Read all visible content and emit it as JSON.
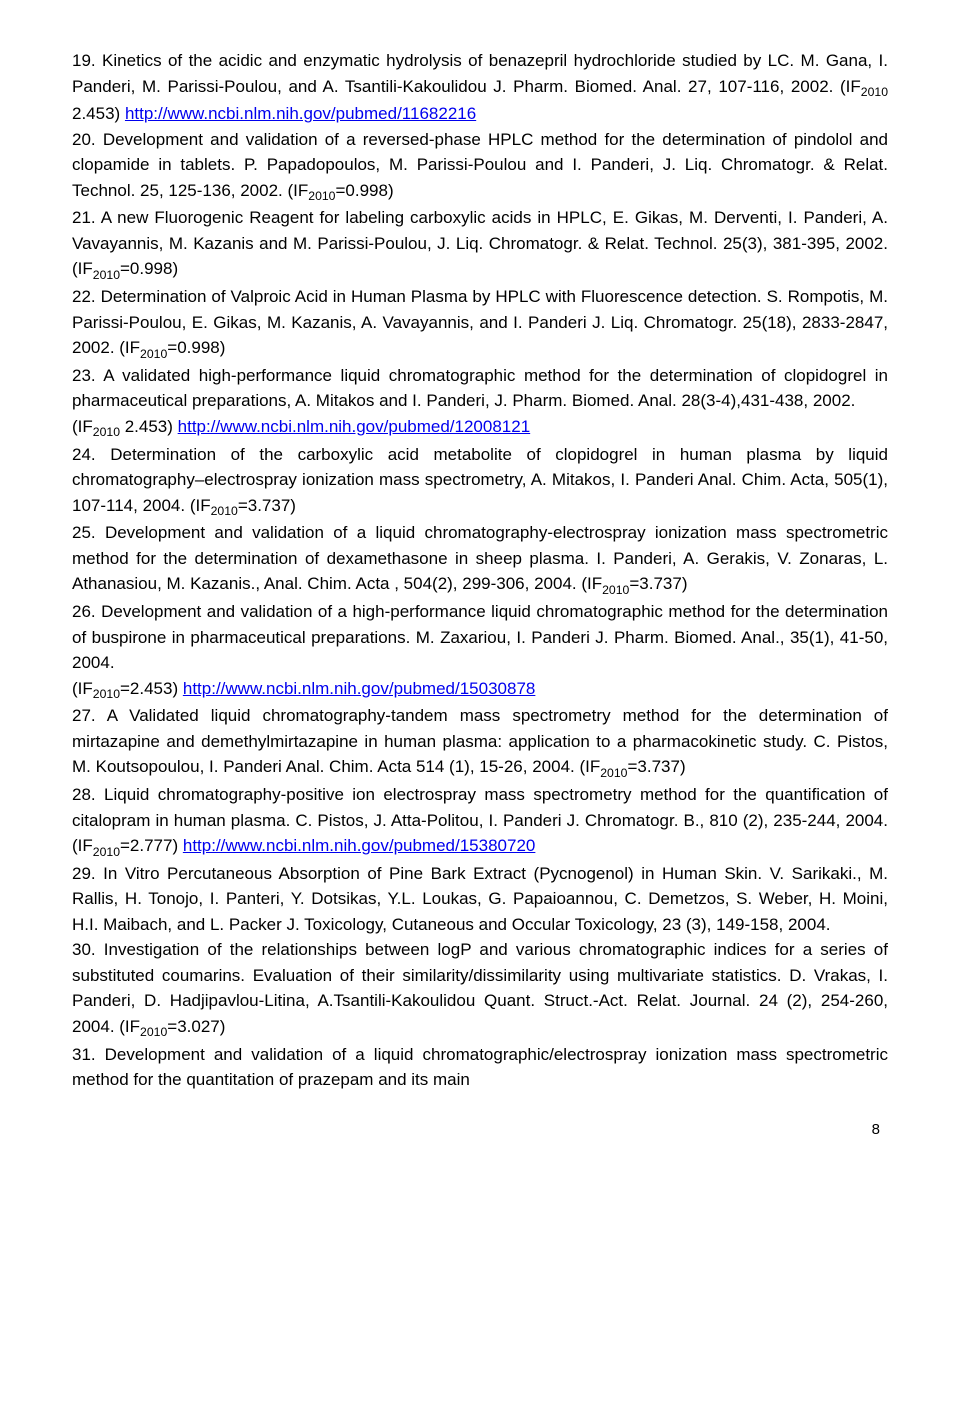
{
  "colors": {
    "text": "#000000",
    "background": "#ffffff",
    "link": "#0000ee"
  },
  "pageNumber": "8",
  "refs": [
    {
      "pre": "19. Kinetics of the acidic and enzymatic hydrolysis of benazepril hydrochloride studied by LC. M. Gana, I. Panderi, M. Parissi-Poulou, and A. Tsantili-Kakoulidou J. Pharm. Biomed. Anal. 27, 107-116, 2002. (IF",
      "sub": "2010",
      "mid": " 2.453) ",
      "link": "http://www.ncbi.nlm.nih.gov/pubmed/11682216",
      "post": ""
    },
    {
      "pre": "20. Development and validation of a reversed-phase HPLC method for the determination of pindolol and clopamide in tablets. P. Papadopoulos, M. Parissi-Poulou and I. Panderi, J. Liq. Chromatogr. & Relat. Technol. 25, 125-136, 2002. (IF",
      "sub": "2010",
      "mid": "=0.998)",
      "link": "",
      "post": ""
    },
    {
      "pre": "21. A new Fluorogenic Reagent for labeling carboxylic acids in HPLC, E. Gikas, M. Derventi, I. Panderi, A. Vavayannis, M. Kazanis and M. Parissi-Poulou, J. Liq. Chromatogr. & Relat. Technol. 25(3), 381-395, 2002. (IF",
      "sub": "2010",
      "mid": "=0.998)",
      "link": "",
      "post": ""
    },
    {
      "pre": "22. Determination of Valproic Acid in Human Plasma by HPLC with Fluorescence detection. S. Rompotis, M. Parissi-Poulou, E. Gikas, M. Kazanis, A. Vavayannis, and I. Panderi J. Liq. Chromatogr. 25(18), 2833-2847, 2002. (IF",
      "sub": "2010",
      "mid": "=0.998)",
      "link": "",
      "post": ""
    },
    {
      "pre": "23. A validated high-performance liquid chromatographic method for the determination of clopidogrel in pharmaceutical preparations, A. Mitakos and I. Panderi, J. Pharm. Biomed. Anal. 28(3-4),431-438, 2002.\n(IF",
      "sub": "2010",
      "mid": " 2.453) ",
      "link": "http://www.ncbi.nlm.nih.gov/pubmed/12008121",
      "post": ""
    },
    {
      "pre": "24. Determination of the carboxylic acid metabolite of clopidogrel in human plasma by liquid chromatography–electrospray ionization mass spectrometry, A. Mitakos, I. Panderi Anal. Chim. Acta, 505(1), 107-114, 2004. (IF",
      "sub": "2010",
      "mid": "=3.737)",
      "link": "",
      "post": ""
    },
    {
      "pre": "25. Development and validation of a liquid chromatography-electrospray ionization mass spectrometric method for the determination of dexamethasone in sheep plasma. I. Panderi, A. Gerakis, V. Zonaras, L. Athanasiou, M. Kazanis., Anal. Chim. Acta , 504(2), 299-306, 2004. (IF",
      "sub": "2010",
      "mid": "=3.737)",
      "link": "",
      "post": ""
    },
    {
      "pre": "26. Development and validation of a high-performance liquid chromatographic method for the determination of buspirone in pharmaceutical preparations. M. Zaxariou, I. Panderi J. Pharm. Biomed. Anal., 35(1), 41-50, 2004.\n(IF",
      "sub": "2010",
      "mid": "=2.453) ",
      "link": "http://www.ncbi.nlm.nih.gov/pubmed/15030878",
      "post": ""
    },
    {
      "pre": "27. A Validated liquid chromatography-tandem mass spectrometry method for the determination of mirtazapine and demethylmirtazapine in human plasma: application to a pharmacokinetic study. C. Pistos, M. Koutsopoulou, I. Panderi Anal. Chim. Acta 514 (1), 15-26, 2004. (IF",
      "sub": "2010",
      "mid": "=3.737)",
      "link": "",
      "post": ""
    },
    {
      "pre": "28. Liquid chromatography-positive ion electrospray mass spectrometry method for the quantification of citalopram in human plasma. C. Pistos, J. Atta-Politou, I. Panderi J. Chromatogr. B., 810 (2), 235-244, 2004. (IF",
      "sub": "2010",
      "mid": "=2.777) ",
      "link": "http://www.ncbi.nlm.nih.gov/pubmed/15380720",
      "post": ""
    },
    {
      "pre": "29. In Vitro Percutaneous Absorption of Pine Bark Extract (Pycnogenol) in Human Skin. V. Sarikaki., M. Rallis, H. Tonojo, I. Panteri, Y. Dotsikas, Y.L. Loukas, G. Papaioannou, C. Demetzos, S. Weber, H. Moini, H.I. Maibach, and L. Packer J. Toxicology, Cutaneous and Occular Toxicology, 23 (3), 149-158, 2004.",
      "sub": "",
      "mid": "",
      "link": "",
      "post": ""
    },
    {
      "pre": "30. Investigation of the relationships between logP and various chromatographic indices for a series of substituted coumarins. Evaluation of their similarity/dissimilarity using multivariate statistics. D. Vrakas, I. Panderi, D. Hadjipavlou-Litina, A.Tsantili-Kakoulidou Quant. Struct.-Act. Relat. Journal. 24 (2), 254-260, 2004. (IF",
      "sub": "2010",
      "mid": "=3.027)",
      "link": "",
      "post": ""
    },
    {
      "pre": "31. Development and validation of a liquid chromatographic/electrospray ionization mass spectrometric method for the quantitation of prazepam and its main",
      "sub": "",
      "mid": "",
      "link": "",
      "post": ""
    }
  ]
}
